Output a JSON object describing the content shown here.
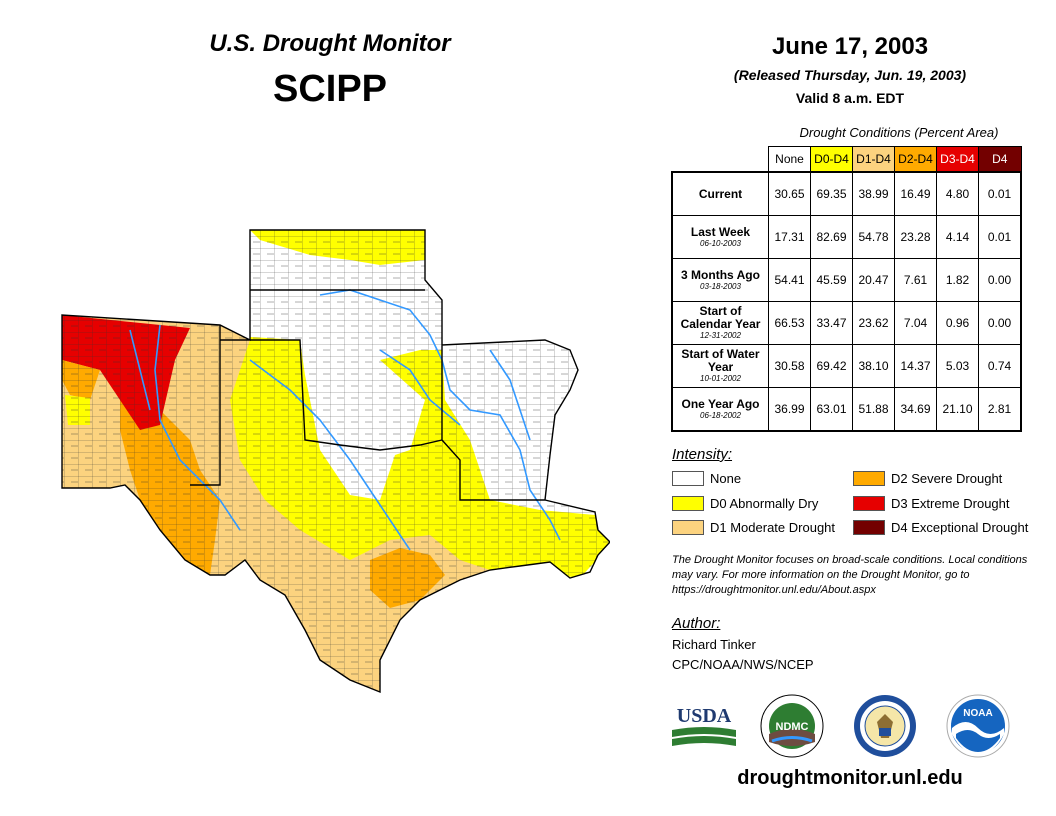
{
  "header": {
    "title": "U.S. Drought Monitor",
    "region": "SCIPP"
  },
  "date_block": {
    "date": "June 17, 2003",
    "released": "(Released Thursday, Jun. 19, 2003)",
    "valid": "Valid 8 a.m. EDT"
  },
  "stats": {
    "caption": "Drought Conditions (Percent Area)",
    "columns": [
      "None",
      "D0-D4",
      "D1-D4",
      "D2-D4",
      "D3-D4",
      "D4"
    ],
    "column_colors": [
      "#ffffff",
      "#ffff00",
      "#fcd37f",
      "#ffaa00",
      "#e60000",
      "#730000"
    ],
    "column_text_colors": [
      "#000000",
      "#000000",
      "#000000",
      "#000000",
      "#ffffff",
      "#ffffff"
    ],
    "rows": [
      {
        "label": "Current",
        "date": "",
        "values": [
          "30.65",
          "69.35",
          "38.99",
          "16.49",
          "4.80",
          "0.01"
        ]
      },
      {
        "label": "Last Week",
        "date": "06-10-2003",
        "values": [
          "17.31",
          "82.69",
          "54.78",
          "23.28",
          "4.14",
          "0.01"
        ]
      },
      {
        "label": "3 Months Ago",
        "date": "03-18-2003",
        "values": [
          "54.41",
          "45.59",
          "20.47",
          "7.61",
          "1.82",
          "0.00"
        ]
      },
      {
        "label": "Start of Calendar Year",
        "date": "12-31-2002",
        "values": [
          "66.53",
          "33.47",
          "23.62",
          "7.04",
          "0.96",
          "0.00"
        ]
      },
      {
        "label": "Start of Water Year",
        "date": "10-01-2002",
        "values": [
          "30.58",
          "69.42",
          "38.10",
          "14.37",
          "5.03",
          "0.74"
        ]
      },
      {
        "label": "One Year Ago",
        "date": "06-18-2002",
        "values": [
          "36.99",
          "63.01",
          "51.88",
          "34.69",
          "21.10",
          "2.81"
        ]
      }
    ]
  },
  "legend": {
    "title": "Intensity:",
    "items": [
      {
        "label": "None",
        "color": "#ffffff"
      },
      {
        "label": "D0 Abnormally Dry",
        "color": "#ffff00"
      },
      {
        "label": "D1 Moderate Drought",
        "color": "#fcd37f"
      },
      {
        "label": "D2 Severe Drought",
        "color": "#ffaa00"
      },
      {
        "label": "D3 Extreme Drought",
        "color": "#e60000"
      },
      {
        "label": "D4 Exceptional Drought",
        "color": "#730000"
      }
    ]
  },
  "note": "The Drought Monitor focuses on broad-scale conditions. Local conditions may vary. For more information on the Drought Monitor, go to https://droughtmonitor.unl.edu/About.aspx",
  "author": {
    "title": "Author:",
    "name": "Richard Tinker",
    "org": "CPC/NOAA/NWS/NCEP"
  },
  "logos": {
    "usda": "USDA",
    "ndmc": "NDMC",
    "noaa": "NOAA"
  },
  "website": "droughtmonitor.unl.edu",
  "map": {
    "colors": {
      "none": "#ffffff",
      "d0": "#ffff00",
      "d1": "#fcd37f",
      "d2": "#ffaa00",
      "d3": "#e60000",
      "d4": "#730000",
      "river": "#3399ff",
      "county": "#333333"
    }
  }
}
